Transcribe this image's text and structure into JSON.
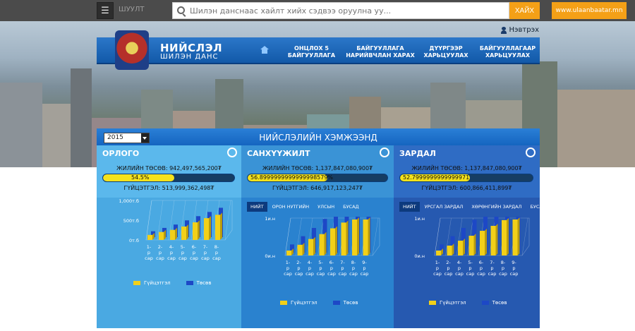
{
  "topbar": {
    "menu_label": "ШУУЛТ",
    "search_placeholder": "Шилэн данснаас хайлт хийх сэдвээ оруулна уу...",
    "search_button": "ХАЙХ",
    "site_link": "www.ulaanbaatar.mn"
  },
  "header": {
    "login": "Нэвтрэх",
    "logo_title": "НИЙСЛЭЛ",
    "logo_sub": "ШИЛЭН ДАНС",
    "nav": [
      {
        "label": "ОНЦЛОХ 5\nБАЙГУУЛЛАГА"
      },
      {
        "label": "БАЙГУУЛЛАГА\nНАРИЙВЧЛАН ХАРАХ"
      },
      {
        "label": "ДҮҮРГЭЭР\nХАРЬЦУУЛАХ"
      },
      {
        "label": "БАЙГУУЛЛАГААР\nХАРЬЦУУЛАХ"
      }
    ]
  },
  "main": {
    "year": "2015",
    "title": "НИЙСЛЭЛИЙН ХЭМЖЭЭНД"
  },
  "colors": {
    "panel1": "#5bb8ec",
    "panel1_chart": "#4aa9e2",
    "panel2": "#3a93d6",
    "panel2_chart": "#2a82cf",
    "panel3": "#2f6cc4",
    "panel3_chart": "#2659b0",
    "bar_yellow": "#f2d019",
    "bar_blue": "#1d48c6"
  },
  "panels": [
    {
      "title": "ОРЛОГО",
      "icon": "money-hand-icon",
      "budget": "ЖИЛИЙН ТӨСӨВ: 942,497,565,200₮",
      "progress_text": "54.5%",
      "progress": 0.545,
      "executed": "ГҮЙЦЭТГЭЛ: 513,999,362,498₮",
      "tabs": []
    },
    {
      "title": "САНХҮҮЖИЛТ",
      "icon": "target-icon",
      "budget": "ЖИЛИЙН ТӨСӨВ: 1,137,847,080,900₮",
      "progress_text": "56.8999999999999998579%",
      "progress": 0.569,
      "executed": "ГҮЙЦЭТГЭЛ: 646,917,123,247₮",
      "tabs": [
        "НИЙТ",
        "ОРОН НУТГИЙН",
        "УЛСЫН",
        "БУСАД"
      ]
    },
    {
      "title": "ЗАРДАЛ",
      "icon": "coins-icon",
      "budget": "ЖИЛИЙН ТӨСӨВ: 1,137,847,080,900₮",
      "progress_text": "52.7999999999999971",
      "progress": 0.528,
      "executed": "ГҮЙЦЭТГЭЛ: 600,866,411,899₮",
      "tabs": [
        "НИЙТ",
        "УРСГАЛ ЗАРДАЛ",
        "ХӨРӨНГИЙН ЗАРДАЛ",
        "БУСАД"
      ]
    }
  ],
  "chart_data": [
    {
      "type": "bar",
      "categories": [
        "1-р сар",
        "2-р сар",
        "4-р сар",
        "5-р сар",
        "6-р сар",
        "7-р сар",
        "8-р сар"
      ],
      "category_lines": [
        [
          "1-",
          "р",
          "сар"
        ],
        [
          "2-",
          "р",
          "сар"
        ],
        [
          "4-",
          "р",
          "сар"
        ],
        [
          "5-",
          "р",
          "сар"
        ],
        [
          "6-",
          "р",
          "сар"
        ],
        [
          "7-",
          "р",
          "сар"
        ],
        [
          "8-",
          "р",
          "сар"
        ]
      ],
      "yticks": [
        "1,000т.б",
        "500т.б",
        "0т.б"
      ],
      "ylim": [
        0,
        1000
      ],
      "series": [
        {
          "name": "Гүйцэтгэл",
          "values": [
            60,
            95,
            120,
            160,
            210,
            260,
            300
          ]
        },
        {
          "name": "Төсөв",
          "values": [
            70,
            110,
            150,
            200,
            250,
            300,
            350
          ]
        }
      ]
    },
    {
      "type": "bar",
      "categories": [
        "1-р сар",
        "2-р сар",
        "4-р сар",
        "5-р сар",
        "6-р сар",
        "7-р сар",
        "8-р сар",
        "9-р сар"
      ],
      "category_lines": [
        [
          "1-",
          "р",
          "сар"
        ],
        [
          "2-",
          "р",
          "сар"
        ],
        [
          "4-",
          "р",
          "сар"
        ],
        [
          "5-",
          "р",
          "сар"
        ],
        [
          "6-",
          "р",
          "сар"
        ],
        [
          "7-",
          "р",
          "сар"
        ],
        [
          "8-",
          "р",
          "сар"
        ],
        [
          "9-",
          "р",
          "сар"
        ]
      ],
      "yticks": [
        "1и.н",
        "0и.н"
      ],
      "ylim": [
        0,
        1
      ],
      "series": [
        {
          "name": "Гүйцэтгэл",
          "values": [
            0.06,
            0.13,
            0.2,
            0.26,
            0.33,
            0.4,
            0.47,
            0.55
          ]
        },
        {
          "name": "Төсөв",
          "values": [
            0.1,
            0.2,
            0.3,
            0.41,
            0.52,
            0.62,
            0.72,
            0.8
          ]
        }
      ]
    },
    {
      "type": "bar",
      "categories": [
        "1-р сар",
        "2-р сар",
        "4-р сар",
        "5-р сар",
        "6-р сар",
        "7-р сар",
        "8-р сар",
        "9-р сар"
      ],
      "category_lines": [
        [
          "1-",
          "р",
          "сар"
        ],
        [
          "2-",
          "р",
          "сар"
        ],
        [
          "4-",
          "р",
          "сар"
        ],
        [
          "5-",
          "р",
          "сар"
        ],
        [
          "6-",
          "р",
          "сар"
        ],
        [
          "7-",
          "р",
          "сар"
        ],
        [
          "8-",
          "р",
          "сар"
        ],
        [
          "9-",
          "р",
          "сар"
        ]
      ],
      "yticks": [
        "1и.н",
        "0и.н"
      ],
      "ylim": [
        0,
        1
      ],
      "series": [
        {
          "name": "Гүйцэтгэл",
          "values": [
            0.06,
            0.12,
            0.18,
            0.24,
            0.3,
            0.36,
            0.43,
            0.5
          ]
        },
        {
          "name": "Төсөв",
          "values": [
            0.1,
            0.2,
            0.3,
            0.4,
            0.5,
            0.6,
            0.7,
            0.8
          ]
        }
      ]
    }
  ]
}
